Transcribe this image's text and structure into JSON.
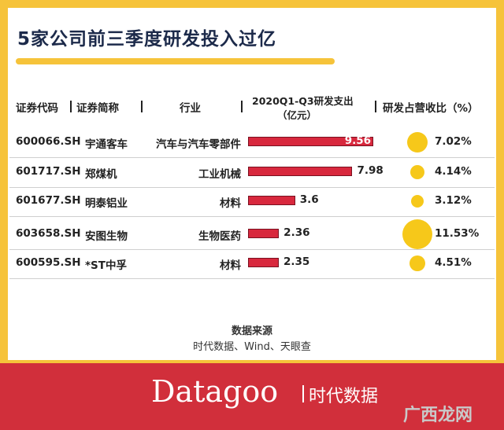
{
  "title": "5家公司前三季度研发投入过亿",
  "headers": {
    "code": "证券代码",
    "name": "证券简称",
    "industry": "行业",
    "rd_spend_line1": "2020Q1-Q3研发支出",
    "rd_spend_line2": "（亿元）",
    "rd_ratio": "研发占营收比（%）"
  },
  "rows": [
    {
      "code": "600066.SH",
      "name": "宇通客车",
      "industry": "汽车与汽车零部件",
      "spend": "9.56",
      "ratio": "7.02%"
    },
    {
      "code": "601717.SH",
      "name": "郑煤机",
      "industry": "工业机械",
      "spend": "7.98",
      "ratio": "4.14%"
    },
    {
      "code": "601677.SH",
      "name": "明泰铝业",
      "industry": "材料",
      "spend": "3.6",
      "ratio": "3.12%"
    },
    {
      "code": "603658.SH",
      "name": "安图生物",
      "industry": "生物医药",
      "spend": "2.36",
      "ratio": "11.53%"
    },
    {
      "code": "600595.SH",
      "name": "*ST中孚",
      "industry": "材料",
      "spend": "2.35",
      "ratio": "4.51%"
    }
  ],
  "chart_data": {
    "type": "table",
    "columns": [
      "证券代码",
      "证券简称",
      "行业",
      "2020Q1-Q3研发支出（亿元）",
      "研发占营收比（%）"
    ],
    "rd_spend": [
      9.56,
      7.98,
      3.6,
      2.36,
      2.35
    ],
    "rd_ratio_pct": [
      7.02,
      4.14,
      3.12,
      11.53,
      4.51
    ],
    "bar_color": "#d8283d",
    "bubble_color": "#f6c81a"
  },
  "source": {
    "title": "数据来源",
    "text": "时代数据、Wind、天眼查"
  },
  "footer": {
    "brand": "Datagoo",
    "brand_cn": "时代数据",
    "watermark": "广西龙网"
  },
  "colors": {
    "frame": "#f6c33a",
    "footer": "#d12f3b",
    "title": "#1c2a4a"
  }
}
